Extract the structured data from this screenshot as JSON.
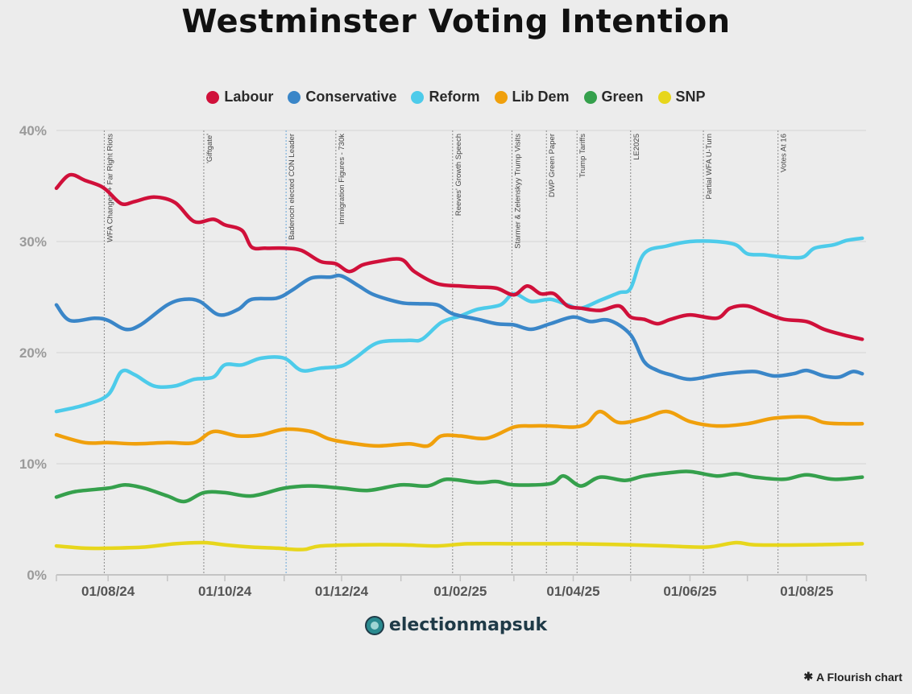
{
  "chart_data": {
    "type": "line",
    "title": "Westminster Voting Intention",
    "xlabel": "",
    "ylabel": "",
    "ylim": [
      0,
      40
    ],
    "xlim": [
      "2024-07-05",
      "2025-09-01"
    ],
    "y_ticks": [
      "0%",
      "10%",
      "20%",
      "30%",
      "40%"
    ],
    "y_tick_values": [
      0,
      10,
      20,
      30,
      40
    ],
    "x_ticks": [
      {
        "date": "2024-08-01",
        "label": "01/08/24"
      },
      {
        "date": "2024-10-01",
        "label": "01/10/24"
      },
      {
        "date": "2024-12-01",
        "label": "01/12/24"
      },
      {
        "date": "2025-02-01",
        "label": "01/02/25"
      },
      {
        "date": "2025-04-01",
        "label": "01/04/25"
      },
      {
        "date": "2025-06-01",
        "label": "01/06/25"
      },
      {
        "date": "2025-08-01",
        "label": "01/08/25"
      }
    ],
    "minor_tick_dates": [
      "2024-07-05",
      "2024-09-01",
      "2024-11-01",
      "2025-01-01",
      "2025-03-01",
      "2025-05-01",
      "2025-07-01",
      "2025-09-01"
    ],
    "grid": true,
    "legend_position": "top-center",
    "series": [
      {
        "name": "Labour",
        "color": "#d0103a",
        "x": [
          "2024-07-05",
          "2024-07-12",
          "2024-07-20",
          "2024-07-28",
          "2024-08-01",
          "2024-08-08",
          "2024-08-15",
          "2024-08-25",
          "2024-09-05",
          "2024-09-15",
          "2024-09-25",
          "2024-10-01",
          "2024-10-10",
          "2024-10-15",
          "2024-10-22",
          "2024-11-01",
          "2024-11-10",
          "2024-11-20",
          "2024-11-28",
          "2024-12-05",
          "2024-12-12",
          "2024-12-20",
          "2025-01-01",
          "2025-01-08",
          "2025-01-20",
          "2025-02-01",
          "2025-02-10",
          "2025-02-20",
          "2025-03-01",
          "2025-03-08",
          "2025-03-15",
          "2025-03-22",
          "2025-03-29",
          "2025-04-05",
          "2025-04-15",
          "2025-04-25",
          "2025-05-01",
          "2025-05-08",
          "2025-05-15",
          "2025-05-22",
          "2025-06-01",
          "2025-06-15",
          "2025-06-22",
          "2025-07-01",
          "2025-07-10",
          "2025-07-20",
          "2025-08-01",
          "2025-08-10",
          "2025-08-20",
          "2025-08-30"
        ],
        "values": [
          34.8,
          36.0,
          35.5,
          35.0,
          34.5,
          33.4,
          33.6,
          34.0,
          33.5,
          31.8,
          32.0,
          31.5,
          31.0,
          29.5,
          29.4,
          29.4,
          29.2,
          28.2,
          28.0,
          27.3,
          27.9,
          28.2,
          28.4,
          27.3,
          26.2,
          26.0,
          25.9,
          25.8,
          25.2,
          26.0,
          25.3,
          25.3,
          24.2,
          24.0,
          23.8,
          24.2,
          23.2,
          23.0,
          22.6,
          23.0,
          23.4,
          23.1,
          24.0,
          24.2,
          23.6,
          23.0,
          22.8,
          22.1,
          21.6,
          21.2
        ]
      },
      {
        "name": "Conservative",
        "color": "#3a86c8",
        "x": [
          "2024-07-05",
          "2024-07-12",
          "2024-07-25",
          "2024-08-01",
          "2024-08-10",
          "2024-08-18",
          "2024-09-01",
          "2024-09-10",
          "2024-09-18",
          "2024-09-28",
          "2024-10-08",
          "2024-10-15",
          "2024-10-28",
          "2024-11-05",
          "2024-11-15",
          "2024-11-25",
          "2024-12-01",
          "2024-12-10",
          "2024-12-18",
          "2025-01-01",
          "2025-01-10",
          "2025-01-20",
          "2025-01-28",
          "2025-02-10",
          "2025-02-20",
          "2025-03-01",
          "2025-03-10",
          "2025-03-20",
          "2025-04-01",
          "2025-04-10",
          "2025-04-20",
          "2025-05-01",
          "2025-05-08",
          "2025-05-15",
          "2025-05-22",
          "2025-06-01",
          "2025-06-15",
          "2025-06-25",
          "2025-07-05",
          "2025-07-15",
          "2025-07-25",
          "2025-08-01",
          "2025-08-10",
          "2025-08-18",
          "2025-08-25",
          "2025-08-30"
        ],
        "values": [
          24.3,
          22.9,
          23.1,
          22.9,
          22.1,
          22.5,
          24.3,
          24.8,
          24.6,
          23.4,
          23.9,
          24.8,
          24.9,
          25.6,
          26.7,
          26.8,
          26.9,
          26.0,
          25.2,
          24.5,
          24.4,
          24.3,
          23.5,
          23.0,
          22.6,
          22.5,
          22.1,
          22.6,
          23.2,
          22.8,
          22.9,
          21.6,
          19.2,
          18.4,
          18.0,
          17.6,
          18.0,
          18.2,
          18.3,
          17.9,
          18.1,
          18.4,
          17.9,
          17.8,
          18.3,
          18.1
        ]
      },
      {
        "name": "Reform",
        "color": "#4dcbea",
        "x": [
          "2024-07-05",
          "2024-07-20",
          "2024-08-01",
          "2024-08-08",
          "2024-08-15",
          "2024-08-25",
          "2024-09-05",
          "2024-09-15",
          "2024-09-25",
          "2024-10-01",
          "2024-10-10",
          "2024-10-20",
          "2024-11-01",
          "2024-11-10",
          "2024-11-20",
          "2024-12-01",
          "2024-12-08",
          "2024-12-20",
          "2025-01-05",
          "2025-01-12",
          "2025-01-22",
          "2025-02-01",
          "2025-02-10",
          "2025-02-22",
          "2025-03-01",
          "2025-03-10",
          "2025-03-20",
          "2025-03-29",
          "2025-04-05",
          "2025-04-15",
          "2025-04-25",
          "2025-05-01",
          "2025-05-08",
          "2025-05-20",
          "2025-06-01",
          "2025-06-15",
          "2025-06-25",
          "2025-07-01",
          "2025-07-10",
          "2025-07-20",
          "2025-07-30",
          "2025-08-05",
          "2025-08-15",
          "2025-08-22",
          "2025-08-30"
        ],
        "values": [
          14.7,
          15.3,
          16.2,
          18.3,
          18.0,
          17.0,
          17.0,
          17.6,
          17.8,
          18.9,
          18.9,
          19.5,
          19.5,
          18.4,
          18.6,
          18.8,
          19.5,
          20.9,
          21.1,
          21.2,
          22.7,
          23.3,
          23.9,
          24.3,
          25.3,
          24.6,
          24.8,
          24.3,
          24.0,
          24.7,
          25.4,
          25.8,
          28.9,
          29.6,
          30.0,
          30.0,
          29.7,
          28.9,
          28.8,
          28.6,
          28.6,
          29.4,
          29.7,
          30.1,
          30.3
        ]
      },
      {
        "name": "Lib Dem",
        "color": "#f0a00c",
        "x": [
          "2024-07-05",
          "2024-07-20",
          "2024-08-01",
          "2024-08-15",
          "2024-09-01",
          "2024-09-15",
          "2024-09-25",
          "2024-10-08",
          "2024-10-20",
          "2024-11-01",
          "2024-11-15",
          "2024-11-25",
          "2024-12-08",
          "2024-12-20",
          "2025-01-05",
          "2025-01-15",
          "2025-01-22",
          "2025-02-01",
          "2025-02-15",
          "2025-03-01",
          "2025-03-10",
          "2025-03-20",
          "2025-04-01",
          "2025-04-08",
          "2025-04-15",
          "2025-04-25",
          "2025-05-08",
          "2025-05-20",
          "2025-06-01",
          "2025-06-15",
          "2025-07-01",
          "2025-07-15",
          "2025-08-01",
          "2025-08-10",
          "2025-08-20",
          "2025-08-30"
        ],
        "values": [
          12.6,
          11.9,
          11.9,
          11.8,
          11.9,
          11.9,
          12.9,
          12.5,
          12.6,
          13.1,
          12.9,
          12.2,
          11.8,
          11.6,
          11.8,
          11.6,
          12.5,
          12.5,
          12.3,
          13.3,
          13.4,
          13.4,
          13.3,
          13.6,
          14.7,
          13.7,
          14.1,
          14.7,
          13.8,
          13.4,
          13.6,
          14.1,
          14.2,
          13.7,
          13.6,
          13.6
        ]
      },
      {
        "name": "Green",
        "color": "#35a04c",
        "x": [
          "2024-07-05",
          "2024-07-15",
          "2024-08-01",
          "2024-08-10",
          "2024-08-20",
          "2024-09-01",
          "2024-09-10",
          "2024-09-20",
          "2024-10-01",
          "2024-10-15",
          "2024-11-01",
          "2024-11-15",
          "2024-12-01",
          "2024-12-15",
          "2025-01-01",
          "2025-01-15",
          "2025-01-25",
          "2025-02-10",
          "2025-02-20",
          "2025-03-01",
          "2025-03-20",
          "2025-03-27",
          "2025-04-05",
          "2025-04-15",
          "2025-04-28",
          "2025-05-08",
          "2025-05-22",
          "2025-06-01",
          "2025-06-15",
          "2025-06-25",
          "2025-07-05",
          "2025-07-20",
          "2025-08-01",
          "2025-08-15",
          "2025-08-30"
        ],
        "values": [
          7.0,
          7.5,
          7.8,
          8.1,
          7.8,
          7.1,
          6.6,
          7.4,
          7.4,
          7.1,
          7.8,
          8.0,
          7.8,
          7.6,
          8.1,
          8.0,
          8.6,
          8.3,
          8.4,
          8.1,
          8.2,
          8.9,
          8.0,
          8.8,
          8.5,
          8.9,
          9.2,
          9.3,
          8.9,
          9.1,
          8.8,
          8.6,
          9.0,
          8.6,
          8.8
        ]
      },
      {
        "name": "SNP",
        "color": "#e7d61c",
        "x": [
          "2024-07-05",
          "2024-07-20",
          "2024-08-01",
          "2024-08-20",
          "2024-09-05",
          "2024-09-20",
          "2024-10-01",
          "2024-10-15",
          "2024-10-29",
          "2024-11-05",
          "2024-11-12",
          "2024-11-20",
          "2024-12-10",
          "2025-01-01",
          "2025-01-20",
          "2025-02-05",
          "2025-03-01",
          "2025-03-20",
          "2025-04-01",
          "2025-05-01",
          "2025-05-20",
          "2025-06-10",
          "2025-06-25",
          "2025-07-05",
          "2025-08-01",
          "2025-08-30"
        ],
        "values": [
          2.6,
          2.4,
          2.4,
          2.5,
          2.8,
          2.9,
          2.7,
          2.5,
          2.4,
          2.3,
          2.3,
          2.6,
          2.7,
          2.7,
          2.6,
          2.8,
          2.8,
          2.8,
          2.8,
          2.7,
          2.6,
          2.5,
          2.9,
          2.7,
          2.7,
          2.8
        ]
      }
    ],
    "annotations": [
      {
        "date": "2024-07-30",
        "text": "WFA Changes + Far Right Riots"
      },
      {
        "date": "2024-09-20",
        "text": "'Giftgate'"
      },
      {
        "date": "2024-11-02",
        "text": "Badenoch elected CON Leader"
      },
      {
        "date": "2024-11-28",
        "text": "Immigration Figures - 730k"
      },
      {
        "date": "2025-01-28",
        "text": "Reeves' Growth Speech"
      },
      {
        "date": "2025-02-28",
        "text": "Starmer & Zelenskyy Trump Visits"
      },
      {
        "date": "2025-03-18",
        "text": "DWP Green Paper"
      },
      {
        "date": "2025-04-03",
        "text": "Trump Tariffs"
      },
      {
        "date": "2025-05-01",
        "text": "LE2025"
      },
      {
        "date": "2025-06-08",
        "text": "Partial WFA U-Turn"
      },
      {
        "date": "2025-07-17",
        "text": "Votes At 16"
      }
    ]
  },
  "brand": {
    "name": "electionmapsuk"
  },
  "credit": {
    "text": "A Flourish chart"
  }
}
